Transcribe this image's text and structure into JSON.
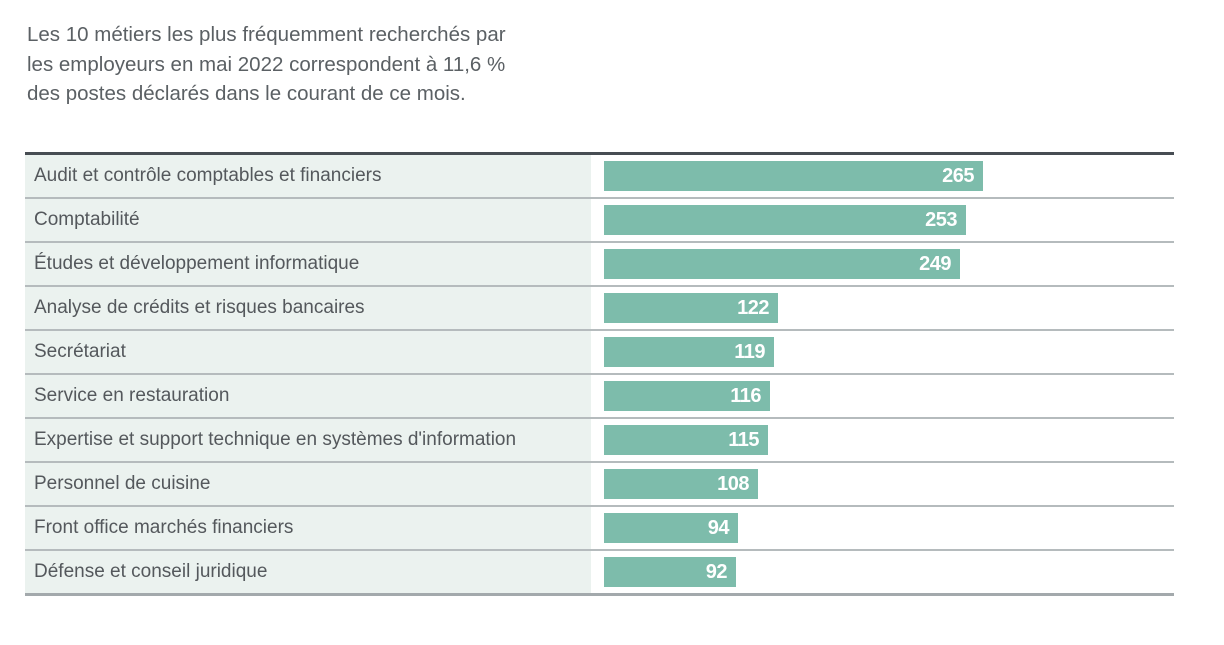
{
  "header": {
    "title_lines": [
      "Les 10 métiers les plus fréquemment recherchés par",
      "les employeurs en mai 2022 correspondent à 11,6 %",
      "des postes déclarés dans le courant de ce mois."
    ]
  },
  "chart_data": {
    "type": "bar",
    "orientation": "horizontal",
    "title": "Les 10 métiers les plus fréquemment recherchés par les employeurs en mai 2022 correspondent à 11,6 % des postes déclarés dans le courant de ce mois.",
    "categories": [
      "Audit et contrôle comptables et financiers",
      "Comptabilité",
      "Études et développement informatique",
      "Analyse de crédits et risques bancaires",
      "Secrétariat",
      "Service en restauration",
      "Expertise et support technique en systèmes d'information",
      "Personnel de cuisine",
      "Front office marchés financiers",
      "Défense et conseil juridique"
    ],
    "values": [
      265,
      253,
      249,
      122,
      119,
      116,
      115,
      108,
      94,
      92
    ],
    "value_label_position": "inside-right",
    "xlim": [
      0,
      399
    ],
    "grid": "off",
    "legend": "none"
  },
  "colors": {
    "bar": "#7dbcab",
    "label_cell_bg": "#ebf2ef",
    "label_text": "#54585c",
    "title_text": "#5b6064",
    "value_text": "#ffffff",
    "table_top_border": "#474d53",
    "row_separator": "#b5bbbd",
    "table_bottom_border": "#a3a9ac",
    "background": "#ffffff"
  }
}
